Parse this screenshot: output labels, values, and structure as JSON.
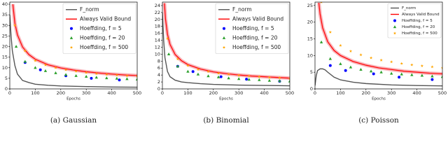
{
  "chart_data": [
    {
      "type": "line",
      "caption": "(a) Gaussian",
      "xlabel": "Epochs",
      "xlim": [
        0,
        500
      ],
      "xticks": [
        0,
        100,
        200,
        300,
        400,
        500
      ],
      "ylim": [
        0,
        41
      ],
      "yticks": [
        0,
        5,
        10,
        15,
        20,
        25,
        30,
        35,
        40
      ],
      "series": [
        {
          "name": "F_norm",
          "color": "#555555",
          "kind": "line",
          "x": [
            0,
            5,
            10,
            20,
            30,
            50,
            75,
            100,
            150,
            200,
            300,
            400,
            500
          ],
          "values": [
            35,
            25,
            18,
            11,
            7,
            4,
            3,
            2.2,
            1.7,
            1.4,
            1.1,
            0.9,
            0.8
          ]
        },
        {
          "name": "Always Valid Bound",
          "color": "#ff0000",
          "kind": "line",
          "x": [
            12,
            20,
            30,
            50,
            75,
            100,
            150,
            200,
            250,
            300,
            350,
            400,
            450,
            500
          ],
          "values": [
            40,
            31,
            25.5,
            19.8,
            16.2,
            14,
            11.4,
            9.9,
            8.9,
            8.1,
            7.5,
            7.0,
            6.6,
            6.3
          ]
        },
        {
          "name": "Hoeffding, f = 5",
          "color": "#0000ff",
          "kind": "circle",
          "x": [
            60,
            120,
            220,
            320,
            430
          ],
          "values": [
            12.5,
            9,
            6.2,
            5,
            4.2
          ]
        },
        {
          "name": "Hoeffding, f = 20",
          "color": "#2ca02c",
          "kind": "triangle",
          "x": [
            25,
            60,
            100,
            140,
            180,
            220,
            260,
            300,
            340,
            380,
            420,
            460,
            500
          ],
          "values": [
            20,
            12.9,
            10,
            8.5,
            7.5,
            6.7,
            6.2,
            5.8,
            5.4,
            5.1,
            4.9,
            4.7,
            4.5
          ]
        },
        {
          "name": "Hoeffding, f = 500",
          "color": "#ffa500",
          "kind": "star",
          "x": [
            20,
            60,
            100,
            140,
            180,
            220,
            260,
            300,
            340,
            380,
            420,
            460,
            500
          ],
          "values": [
            30,
            18,
            13.3,
            11.3,
            10.0,
            9.0,
            8.3,
            7.7,
            7.2,
            6.8,
            6.5,
            6.2,
            6.0
          ]
        }
      ]
    },
    {
      "type": "line",
      "caption": "(b) Binomial",
      "xlabel": "Epochs",
      "xlim": [
        0,
        500
      ],
      "xticks": [
        0,
        100,
        200,
        300,
        400,
        500
      ],
      "ylim": [
        0,
        25
      ],
      "yticks": [
        0,
        2,
        4,
        6,
        8,
        10,
        12,
        14,
        16,
        18,
        20,
        22,
        24
      ],
      "series": [
        {
          "name": "F_norm",
          "color": "#555555",
          "kind": "line",
          "x": [
            0,
            5,
            10,
            20,
            30,
            50,
            75,
            100,
            150,
            200,
            300,
            400,
            500
          ],
          "values": [
            22,
            14,
            9,
            5,
            3.5,
            2.5,
            2,
            1.8,
            1.5,
            1.3,
            1.1,
            1.0,
            0.9
          ]
        },
        {
          "name": "Always Valid Bound",
          "color": "#ff0000",
          "kind": "line",
          "x": [
            8,
            12,
            20,
            30,
            50,
            75,
            100,
            150,
            200,
            250,
            300,
            350,
            400,
            450,
            500
          ],
          "values": [
            24.7,
            20.2,
            15.7,
            12.8,
            9.9,
            8.1,
            7,
            5.7,
            4.9,
            4.4,
            4.0,
            3.7,
            3.5,
            3.3,
            3.1
          ]
        },
        {
          "name": "Hoeffding, f = 5",
          "color": "#0000ff",
          "kind": "circle",
          "x": [
            60,
            120,
            230,
            330,
            460
          ],
          "values": [
            6.5,
            5,
            3.5,
            2.8,
            2.2
          ]
        },
        {
          "name": "Hoeffding, f = 20",
          "color": "#2ca02c",
          "kind": "triangle",
          "x": [
            25,
            60,
            100,
            140,
            180,
            220,
            260,
            300,
            340,
            380,
            420,
            460,
            500
          ],
          "values": [
            10,
            6.5,
            5,
            4.2,
            3.7,
            3.4,
            3.1,
            2.9,
            2.7,
            2.6,
            2.4,
            2.3,
            2.2
          ]
        },
        {
          "name": "Hoeffding, f = 500",
          "color": "#ffa500",
          "kind": "star",
          "x": [
            20,
            60,
            100,
            140,
            180,
            220,
            260,
            300,
            340,
            380,
            420,
            460,
            500
          ],
          "values": [
            14.5,
            8.6,
            6.7,
            5.6,
            5.0,
            4.5,
            4.2,
            3.9,
            3.7,
            3.5,
            3.3,
            3.2,
            3.0
          ]
        }
      ]
    },
    {
      "type": "line",
      "caption": "(c) Poisson",
      "xlabel": "Epochs",
      "xlim": [
        0,
        500
      ],
      "xticks": [
        0,
        100,
        200,
        300,
        400,
        500
      ],
      "ylim": [
        0,
        26
      ],
      "yticks": [
        0,
        5,
        10,
        15,
        20,
        25
      ],
      "series": [
        {
          "name": "F_norm",
          "color": "#555555",
          "kind": "line",
          "x": [
            0,
            5,
            10,
            20,
            30,
            40,
            50,
            75,
            100,
            150,
            200,
            300,
            400,
            500
          ],
          "values": [
            1,
            4,
            5.5,
            6,
            6,
            5.7,
            5,
            3.5,
            2.7,
            2,
            1.6,
            1.2,
            1,
            0.9
          ]
        },
        {
          "name": "Always Valid Bound",
          "color": "#ff0000",
          "kind": "line",
          "x": [
            15,
            20,
            30,
            50,
            75,
            100,
            150,
            200,
            250,
            300,
            350,
            400,
            450,
            500
          ],
          "values": [
            25.8,
            22.4,
            18.3,
            14.1,
            11.5,
            10,
            8.2,
            7.1,
            6.3,
            5.8,
            5.3,
            5,
            4.7,
            4.5
          ]
        },
        {
          "name": "Hoeffding, f = 5",
          "color": "#0000ff",
          "kind": "circle",
          "x": [
            60,
            120,
            230,
            330,
            460
          ],
          "values": [
            7,
            5.5,
            4.5,
            3.5,
            2.8
          ]
        },
        {
          "name": "Hoeffding, f = 20",
          "color": "#2ca02c",
          "kind": "triangle",
          "x": [
            25,
            60,
            100,
            140,
            180,
            220,
            260,
            300,
            340,
            380,
            420,
            460,
            500
          ],
          "values": [
            14,
            9,
            7.5,
            6.5,
            5.8,
            5.3,
            5,
            4.6,
            4.4,
            4.2,
            4,
            3.8,
            3.6
          ]
        },
        {
          "name": "Hoeffding, f = 500",
          "color": "#ffa500",
          "kind": "star",
          "x": [
            25,
            60,
            100,
            140,
            180,
            220,
            260,
            300,
            340,
            380,
            420,
            460,
            500
          ],
          "values": [
            26,
            17,
            13,
            11.3,
            10.2,
            9.3,
            8.6,
            8.1,
            7.6,
            7.2,
            6.9,
            6.6,
            6.3
          ]
        }
      ]
    }
  ]
}
